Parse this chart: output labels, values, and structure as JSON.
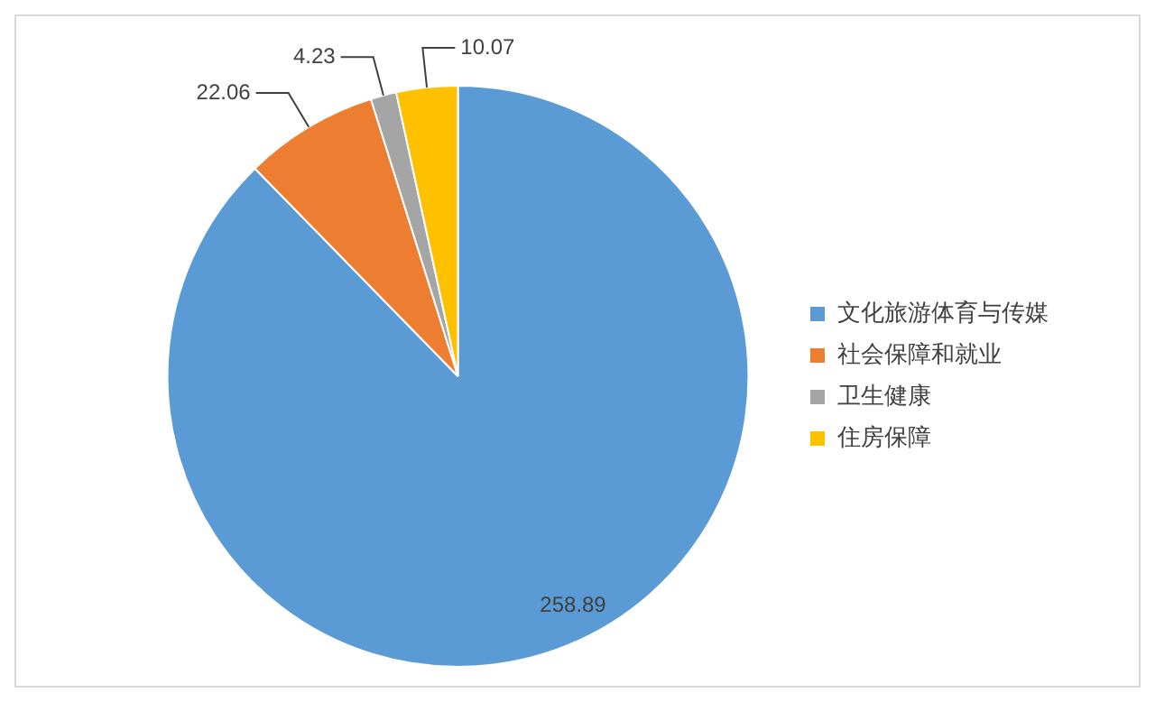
{
  "chart_data": {
    "type": "pie",
    "categories": [
      "文化旅游体育与传媒",
      "社会保障和就业",
      "卫生健康",
      "住房保障"
    ],
    "values": [
      258.89,
      22.06,
      4.23,
      10.07
    ],
    "colors": [
      "#5b9bd5",
      "#ed7d31",
      "#a5a5a5",
      "#ffc000"
    ],
    "data_labels": true,
    "legend": "right"
  }
}
